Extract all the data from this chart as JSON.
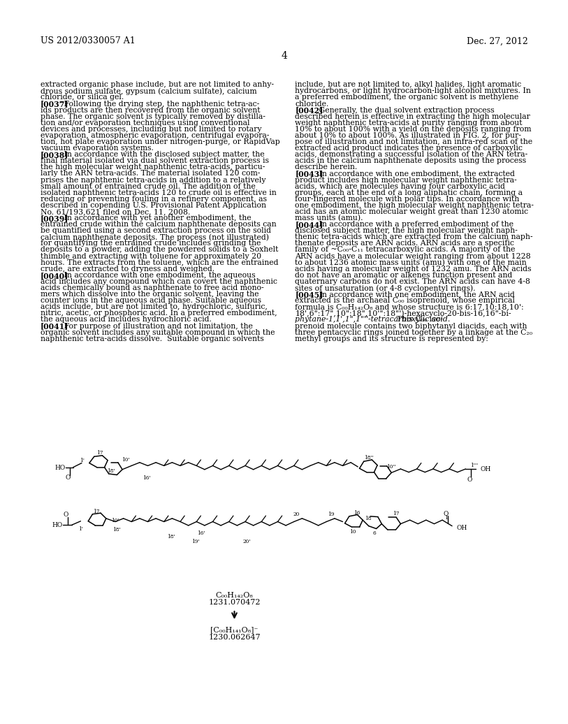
{
  "background_color": "#ffffff",
  "header_left": "US 2012/0330057 A1",
  "header_right": "Dec. 27, 2012",
  "page_number": "4",
  "left_col": [
    [
      "normal",
      "extracted organic phase include, but are not limited to anhy-"
    ],
    [
      "normal",
      "drous sodium sulfate, gypsum (calcium sulfate), calcium"
    ],
    [
      "normal",
      "chloride, or silica gel."
    ],
    [
      "para",
      "[0037]",
      "   Following the drying step, the naphthenic tetra-ac-"
    ],
    [
      "normal",
      "ids products are then recovered from the organic solvent"
    ],
    [
      "normal",
      "phase. The organic solvent is typically removed by distilla-"
    ],
    [
      "normal",
      "tion and/or evaporation techniques using conventional"
    ],
    [
      "normal",
      "devices and processes, including but not limited to rotary"
    ],
    [
      "normal",
      "evaporation, atmospheric evaporation, centrifugal evapora-"
    ],
    [
      "normal",
      "tion, hot plate evaporation under nitrogen-purge, or RapidVap"
    ],
    [
      "normal",
      "vacuum evaporation systems."
    ],
    [
      "para",
      "[0038]",
      "   In accordance with the disclosed subject matter, the"
    ],
    [
      "normal",
      "final material isolated via dual solvent extraction process is"
    ],
    [
      "normal",
      "the high molecular weight naphthenic tetra-acids, particu-"
    ],
    [
      "normal",
      "larly the ARN tetra-acids. The material isolated 120 com-"
    ],
    [
      "normal",
      "prises the naphthenic tetra-acids in addition to a relatively"
    ],
    [
      "normal",
      "small amount of entrained crude oil. The addition of the"
    ],
    [
      "normal",
      "isolated naphthenic tetra-acids 120 to crude oil is effective in"
    ],
    [
      "normal",
      "reducing or preventing fouling in a refinery component, as"
    ],
    [
      "normal",
      "described in copending U.S. Provisional Patent Application"
    ],
    [
      "normal",
      "No. 61/193,621 filed on Dec. 11, 2008."
    ],
    [
      "para",
      "[0039]",
      "   In accordance with yet another embodiment, the"
    ],
    [
      "normal",
      "entrained crude within the calcium naphthenate deposits can"
    ],
    [
      "normal",
      "be quantified using a second extraction process on the solid"
    ],
    [
      "normal",
      "calcium naphthenate deposits. The process (not illustrated)"
    ],
    [
      "normal",
      "for quantifying the entrained crude includes grinding the"
    ],
    [
      "normal",
      "deposits to a powder, adding the powdered solids to a Soxhelt"
    ],
    [
      "normal",
      "thimble and extracting with toluene for approximately 20"
    ],
    [
      "normal",
      "hours. The extracts from the toluene, which are the entrained"
    ],
    [
      "normal",
      "crude, are extracted to dryness and weighed."
    ],
    [
      "para",
      "[0040]",
      "   In accordance with one embodiment, the aqueous"
    ],
    [
      "normal",
      "acid includes any compound which can covert the naphthenic"
    ],
    [
      "normal",
      "acids chemically bound as naphthenate to free acid mono-"
    ],
    [
      "normal",
      "mers which dissolve into the organic solvent, leaving the"
    ],
    [
      "normal",
      "counter ions in the aqueous acid phase. Suitable aqueous"
    ],
    [
      "normal",
      "acids include, but are not limited to, hydrochloric, sulfuric,"
    ],
    [
      "normal",
      "nitric, acetic, or phosphoric acid. In a preferred embodiment,"
    ],
    [
      "normal",
      "the aqueous acid includes hydrochloric acid."
    ],
    [
      "para",
      "[0041]",
      "   For purpose of illustration and not limitation, the"
    ],
    [
      "normal",
      "organic solvent includes any suitable compound in which the"
    ],
    [
      "normal",
      "naphthenic tetra-acids dissolve.  Suitable organic solvents"
    ]
  ],
  "right_col": [
    [
      "normal",
      "include, but are not limited to, alkyl halides, light aromatic"
    ],
    [
      "normal",
      "hydrocarbons, or light hydrocarbon-light alcohol mixtures. In"
    ],
    [
      "normal",
      "a preferred embodiment, the organic solvent is methylene"
    ],
    [
      "normal",
      "chloride."
    ],
    [
      "para",
      "[0042]",
      "   Generally, the dual solvent extraction process"
    ],
    [
      "normal",
      "described herein is effective in extracting the high molecular"
    ],
    [
      "normal",
      "weight naphthenic tetra-acids at purity ranging from about"
    ],
    [
      "normal",
      "10% to about 100% with a yield on the deposits ranging from"
    ],
    [
      "normal",
      "about 10% to about 100%. As illustrated in FIG. 2, for pur-"
    ],
    [
      "normal",
      "pose of illustration and not limitation, an infra-red scan of the"
    ],
    [
      "normal",
      "extracted acid product indicates the presence of carboxylic"
    ],
    [
      "normal",
      "acids, demonstrating a successful isolation of the ARN tetra-"
    ],
    [
      "normal",
      "acids in the calcium naphthenate deposits using the process"
    ],
    [
      "normal",
      "describe herein."
    ],
    [
      "para",
      "[0043]",
      "   In accordance with one embodiment, the extracted"
    ],
    [
      "normal",
      "product includes high molecular weight naphthenic tetra-"
    ],
    [
      "normal",
      "acids, which are molecules having four carboxylic acid"
    ],
    [
      "normal",
      "groups, each at the end of a long aliphatic chain, forming a"
    ],
    [
      "normal",
      "four-fingered molecule with polar tips. In accordance with"
    ],
    [
      "normal",
      "one embodiment, the high molecular weight naphthenic tetra-"
    ],
    [
      "normal",
      "acid has an atomic molecular weight great than 1230 atomic"
    ],
    [
      "normal",
      "mass units (amu)."
    ],
    [
      "para",
      "[0044]",
      "   In accordance with a preferred embodiment of the"
    ],
    [
      "normal",
      "disclosed subject matter, the high molecular weight naph-"
    ],
    [
      "normal",
      "thenic tetra-acids which are extracted from the calcium naph-"
    ],
    [
      "normal",
      "thenate deposits are ARN acids. ARN acids are a specific"
    ],
    [
      "normal",
      "family of ~C₀₀-C₁₁ tetracarboxylic acids. A majority of the"
    ],
    [
      "normal",
      "ARN acids have a molecular weight ranging from about 1228"
    ],
    [
      "normal",
      "to about 1236 atomic mass units (amu) with one of the main"
    ],
    [
      "normal",
      "acids having a molecular weight of 1232 amu. The ARN acids"
    ],
    [
      "normal",
      "do not have an aromatic or alkenes function present and"
    ],
    [
      "normal",
      "quaternary carbons do not exist. The ARN acids can have 4-8"
    ],
    [
      "normal",
      "sites of unsaturation (or 4-8 cyclopentyl rings)."
    ],
    [
      "para",
      "[0045]",
      "   In accordance with one embodiment, the ARN acid"
    ],
    [
      "normal",
      "extracted is the archaeal C₀₀ isoprenoid, whose empirical"
    ],
    [
      "normal",
      "formula is C₀₀H₁₄₂O₈ and whose structure is 6:17,10:18,10':"
    ],
    [
      "normal",
      "18',6\":17\",10\":18\",10'\":18\"')-hexacyclo-20-bis-16,16\"-bi-"
    ],
    [
      "italic_part",
      "phytane-1,1',1\",1\"''-tetracarboxylic acid.",
      " This C₀₀ iso-"
    ],
    [
      "normal",
      "prenoid molecule contains two biphytanyl diacids, each with"
    ],
    [
      "normal",
      "three pentacyclic rings joined together by a linkage at the C₂₀"
    ],
    [
      "normal",
      "methyl groups and its structure is represented by:"
    ]
  ]
}
